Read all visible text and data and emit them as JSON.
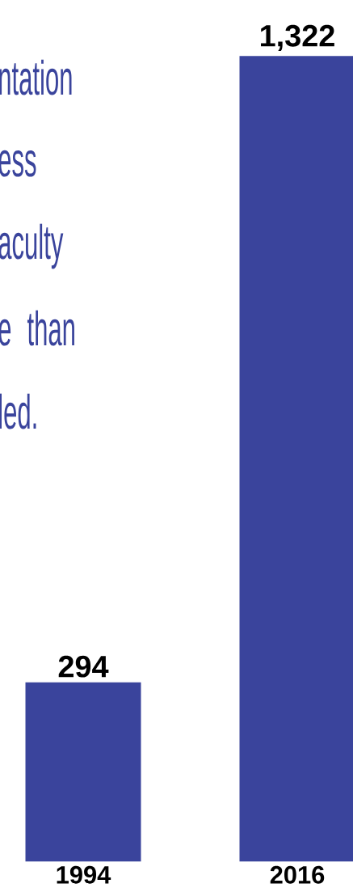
{
  "chart_data": {
    "type": "bar",
    "categories": [
      "1994",
      "2016"
    ],
    "values": [
      294,
      1322
    ],
    "value_labels": [
      "294",
      "1,322"
    ],
    "color": "#3a449c",
    "annotations": [
      "ntation",
      "ess",
      "aculty",
      "e than",
      "led."
    ]
  }
}
